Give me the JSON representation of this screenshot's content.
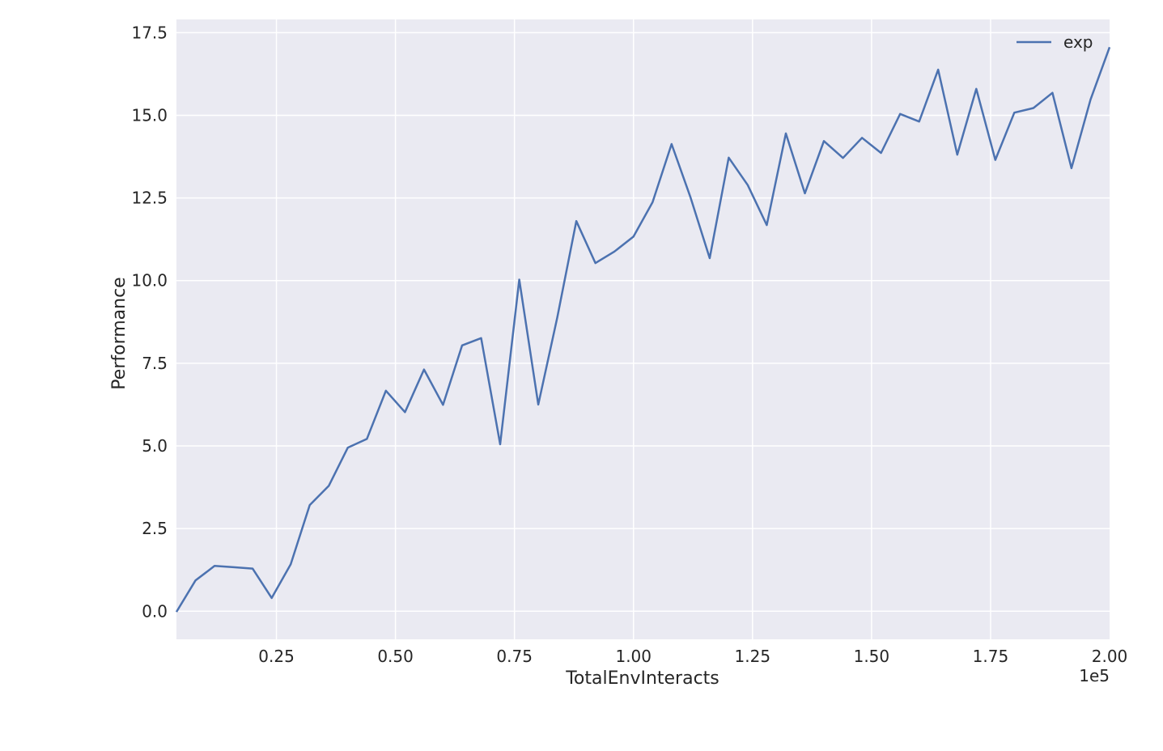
{
  "chart_data": {
    "type": "line",
    "title": "",
    "xlabel": "TotalEnvInteracts",
    "ylabel": "Performance",
    "x_offset_label": "1e5",
    "xlim": [
      0.04,
      2.0
    ],
    "ylim": [
      -0.85,
      17.9
    ],
    "xticks": [
      0.25,
      0.5,
      0.75,
      1.0,
      1.25,
      1.5,
      1.75,
      2.0
    ],
    "xtick_labels": [
      "0.25",
      "0.50",
      "0.75",
      "1.00",
      "1.25",
      "1.50",
      "1.75",
      "2.00"
    ],
    "yticks": [
      0.0,
      2.5,
      5.0,
      7.5,
      10.0,
      12.5,
      15.0,
      17.5
    ],
    "ytick_labels": [
      "0.0",
      "2.5",
      "5.0",
      "7.5",
      "10.0",
      "12.5",
      "15.0",
      "17.5"
    ],
    "grid": true,
    "legend_position": "top-right",
    "background_color": "#eaeaf2",
    "grid_color": "#ffffff",
    "series": [
      {
        "name": "exp",
        "color": "#4c72b0",
        "x": [
          0.04,
          0.08,
          0.12,
          0.16,
          0.2,
          0.24,
          0.28,
          0.32,
          0.36,
          0.4,
          0.44,
          0.48,
          0.52,
          0.56,
          0.6,
          0.64,
          0.68,
          0.72,
          0.76,
          0.8,
          0.84,
          0.88,
          0.92,
          0.96,
          1.0,
          1.04,
          1.08,
          1.12,
          1.16,
          1.2,
          1.24,
          1.28,
          1.32,
          1.36,
          1.4,
          1.44,
          1.48,
          1.52,
          1.56,
          1.6,
          1.64,
          1.68,
          1.72,
          1.76,
          1.8,
          1.84,
          1.88,
          1.92,
          1.96,
          2.0
        ],
        "y": [
          -0.02,
          0.93,
          1.37,
          1.33,
          1.29,
          0.4,
          1.42,
          3.21,
          3.79,
          4.95,
          5.21,
          6.67,
          6.02,
          7.31,
          6.24,
          8.04,
          8.26,
          5.05,
          10.03,
          6.25,
          8.89,
          11.8,
          10.53,
          10.88,
          11.33,
          12.37,
          14.13,
          12.51,
          10.68,
          13.72,
          12.89,
          11.68,
          14.45,
          12.64,
          14.22,
          13.71,
          14.32,
          13.86,
          15.04,
          14.81,
          16.38,
          13.81,
          15.8,
          13.65,
          15.08,
          15.22,
          15.68,
          13.4,
          15.48,
          17.06
        ]
      }
    ]
  }
}
